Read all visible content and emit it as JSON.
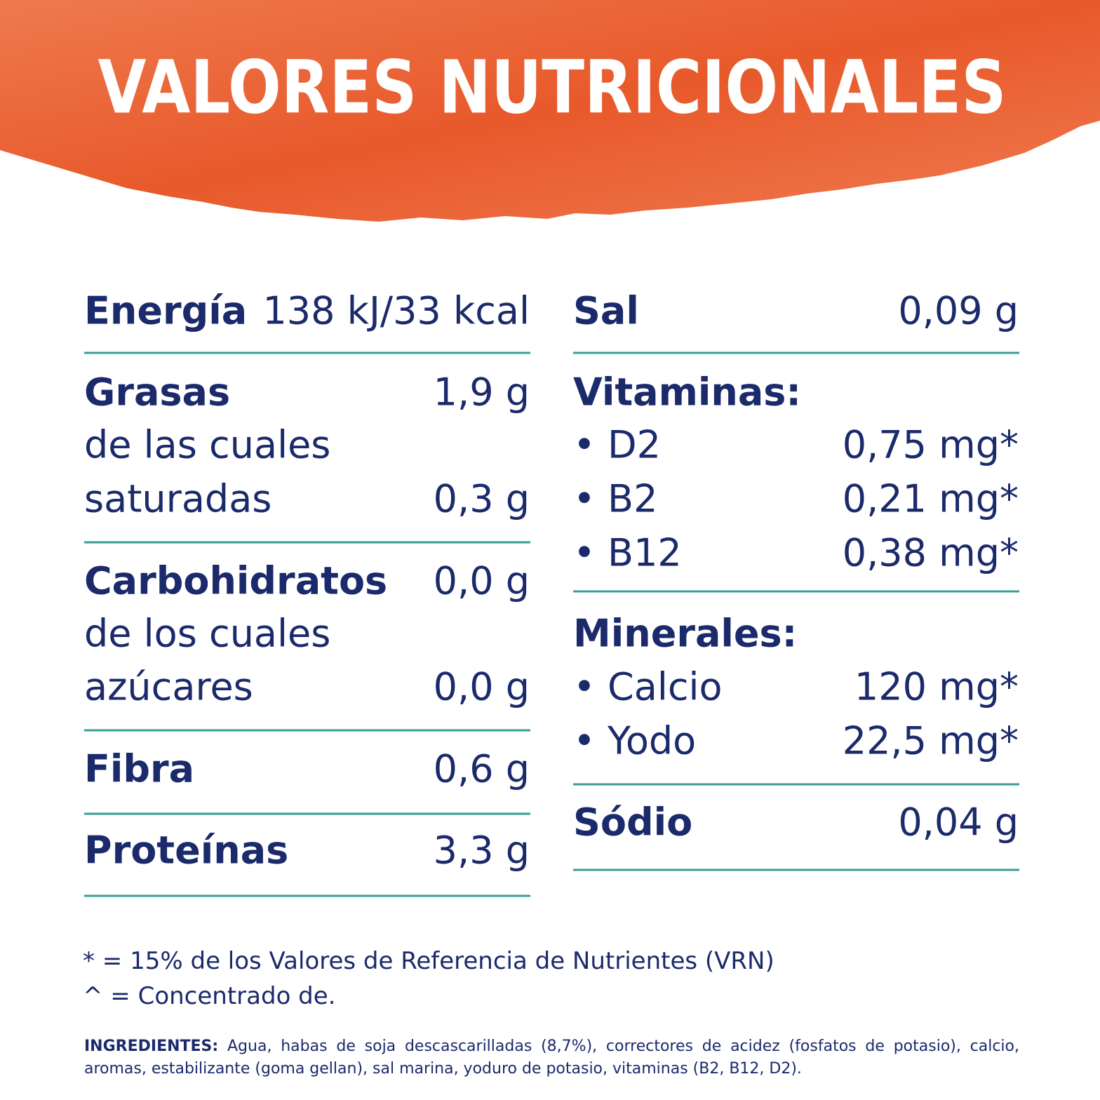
{
  "header": {
    "title": "VALORES NUTRICIONALES"
  },
  "left_column": {
    "rows": [
      {
        "label": "Energía",
        "value": "138 kJ/33 kcal"
      },
      {
        "label": "Grasas",
        "value": "1,9 g"
      },
      {
        "label": "de las cuales"
      },
      {
        "label": "saturadas",
        "value": "0,3 g"
      },
      {
        "label": "Carbohidratos",
        "value": "0,0 g"
      },
      {
        "label": "de los cuales"
      },
      {
        "label": "azúcares",
        "value": "0,0 g"
      },
      {
        "label": "Fibra",
        "value": "0,6 g"
      },
      {
        "label": "Proteínas",
        "value": "3,3 g"
      }
    ]
  },
  "right_column": {
    "rows": [
      {
        "label": "Sal",
        "value": "0,09 g"
      },
      {
        "label": "Vitaminas:"
      },
      {
        "label": "• D2",
        "value": "0,75 mg*"
      },
      {
        "label": "• B2",
        "value": "0,21 mg*"
      },
      {
        "label": "• B12",
        "value": "0,38 mg*"
      },
      {
        "label": "Minerales:"
      },
      {
        "label": "• Calcio",
        "value": "120 mg*"
      },
      {
        "label": "• Yodo",
        "value": "22,5 mg*"
      },
      {
        "label": "Sódio",
        "value": "0,04 g"
      }
    ]
  },
  "footnotes": [
    "* = 15% de los Valores de Referencia de Nutrientes (VRN)",
    "^ = Concentrado de."
  ],
  "ingredients": {
    "label": "INGREDIENTES:",
    "text": "Agua, habas de soja descascarilladas (8,7%), correctores de acidez (fosfatos de potasio), calcio, aromas, estabilizante (goma gellan), sal marina, yoduro de potasio, vitaminas (B2, B12, D2)."
  }
}
